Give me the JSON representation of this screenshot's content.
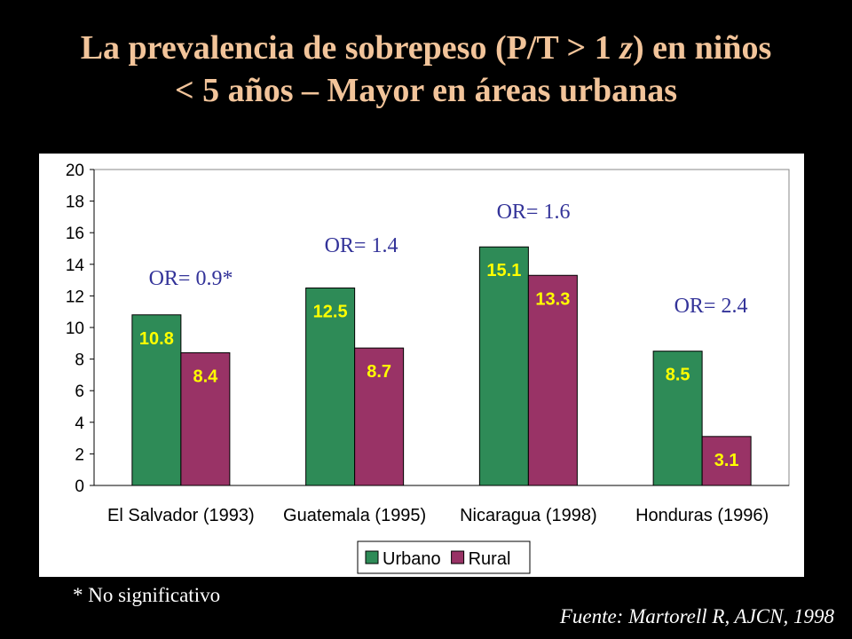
{
  "title": {
    "line1_before": "La prevalencia de sobrepeso (P/T > 1 ",
    "line1_z": "z",
    "line1_after": ") en niños",
    "line2": "< 5 años – Mayor en áreas urbanas"
  },
  "chart_data": {
    "type": "bar",
    "categories": [
      "El Salvador (1993)",
      "Guatemala (1995)",
      "Nicaragua (1998)",
      "Honduras (1996)"
    ],
    "series": [
      {
        "name": "Urbano",
        "values": [
          10.8,
          12.5,
          15.1,
          8.5
        ],
        "color": "#2e8b57"
      },
      {
        "name": "Rural",
        "values": [
          8.4,
          8.7,
          13.3,
          3.1
        ],
        "color": "#993366"
      }
    ],
    "ylim": [
      0,
      20
    ],
    "yticks": [
      0,
      2,
      4,
      6,
      8,
      10,
      12,
      14,
      16,
      18,
      20
    ],
    "annotations": [
      "OR= 0.9*",
      "OR= 1.4",
      "OR= 1.6",
      "OR= 2.4"
    ],
    "annotation_color": "#333399",
    "label_color": "#ffff00",
    "legend_position": "bottom"
  },
  "footnote": "* No significativo",
  "source": "Fuente: Martorell R, AJCN, 1998"
}
